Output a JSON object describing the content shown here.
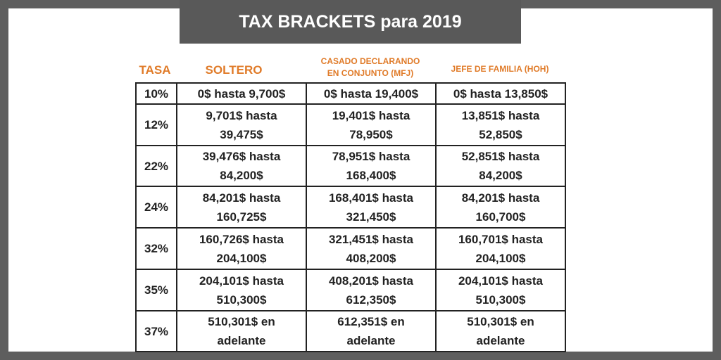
{
  "title": "TAX BRACKETS para 2019",
  "headers": {
    "rate": "TASA",
    "single": "SOLTERO",
    "married": [
      "CASADO DECLARANDO",
      "EN CONJUNTO (MFJ)"
    ],
    "head": "JEFE DE FAMILIA (HOH)"
  },
  "rows": [
    {
      "rate": "10%",
      "cells": [
        [
          "0$ hasta 9,700$"
        ],
        [
          "0$ hasta 19,400$"
        ],
        [
          "0$ hasta 13,850$"
        ]
      ]
    },
    {
      "rate": "12%",
      "cells": [
        [
          "9,701$ hasta",
          "39,475$"
        ],
        [
          "19,401$ hasta",
          "78,950$"
        ],
        [
          "13,851$ hasta",
          "52,850$"
        ]
      ]
    },
    {
      "rate": "22%",
      "cells": [
        [
          "39,476$ hasta",
          "84,200$"
        ],
        [
          "78,951$ hasta",
          "168,400$"
        ],
        [
          "52,851$ hasta",
          "84,200$"
        ]
      ]
    },
    {
      "rate": "24%",
      "cells": [
        [
          "84,201$ hasta",
          "160,725$"
        ],
        [
          "168,401$ hasta",
          "321,450$"
        ],
        [
          "84,201$ hasta",
          "160,700$"
        ]
      ]
    },
    {
      "rate": "32%",
      "cells": [
        [
          "160,726$ hasta",
          "204,100$"
        ],
        [
          "321,451$ hasta",
          "408,200$"
        ],
        [
          "160,701$ hasta",
          "204,100$"
        ]
      ]
    },
    {
      "rate": "35%",
      "cells": [
        [
          "204,101$ hasta",
          "510,300$"
        ],
        [
          "408,201$ hasta",
          "612,350$"
        ],
        [
          "204,101$ hasta",
          "510,300$"
        ]
      ]
    },
    {
      "rate": "37%",
      "cells": [
        [
          "510,301$ en",
          "adelante"
        ],
        [
          "612,351$ en",
          "adelante"
        ],
        [
          "510,301$ en",
          "adelante"
        ]
      ]
    }
  ]
}
